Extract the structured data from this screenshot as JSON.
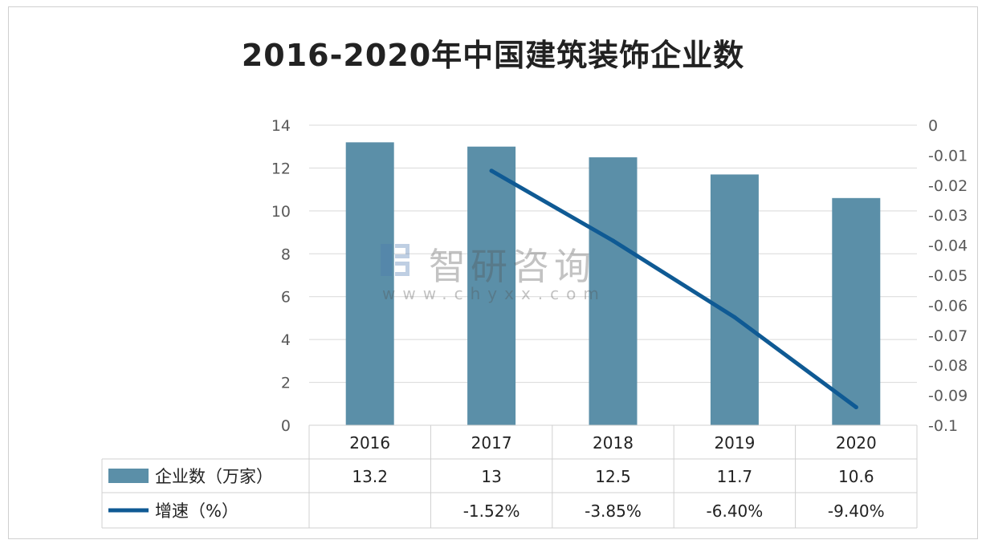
{
  "chart_data": {
    "type": "bar",
    "title": "2016-2020年中国建筑装饰企业数",
    "categories": [
      "2016",
      "2017",
      "2018",
      "2019",
      "2020"
    ],
    "series": [
      {
        "name": "企业数（万家）",
        "type": "bar",
        "axis": "left",
        "color": "#5b8fa8",
        "values": [
          13.2,
          13,
          12.5,
          11.7,
          10.6
        ],
        "table_labels": [
          "13.2",
          "13",
          "12.5",
          "11.7",
          "10.6"
        ]
      },
      {
        "name": "增速（%）",
        "type": "line",
        "axis": "right",
        "color": "#0f5a94",
        "values": [
          null,
          -0.0152,
          -0.0385,
          -0.064,
          -0.094
        ],
        "table_labels": [
          "",
          "-1.52%",
          "-3.85%",
          "-6.40%",
          "-9.40%"
        ]
      }
    ],
    "left_axis": {
      "ylim": [
        0,
        14
      ],
      "ticks": [
        "0",
        "2",
        "4",
        "6",
        "8",
        "10",
        "12",
        "14"
      ]
    },
    "right_axis": {
      "ylim": [
        -0.1,
        0
      ],
      "ticks": [
        "0",
        "-0.01",
        "-0.02",
        "-0.03",
        "-0.04",
        "-0.05",
        "-0.06",
        "-0.07",
        "-0.08",
        "-0.09",
        "-0.1"
      ]
    },
    "grid": true,
    "legend": "data-table"
  },
  "watermark": {
    "name": "智研咨询",
    "url": "www.chyxx.com"
  }
}
